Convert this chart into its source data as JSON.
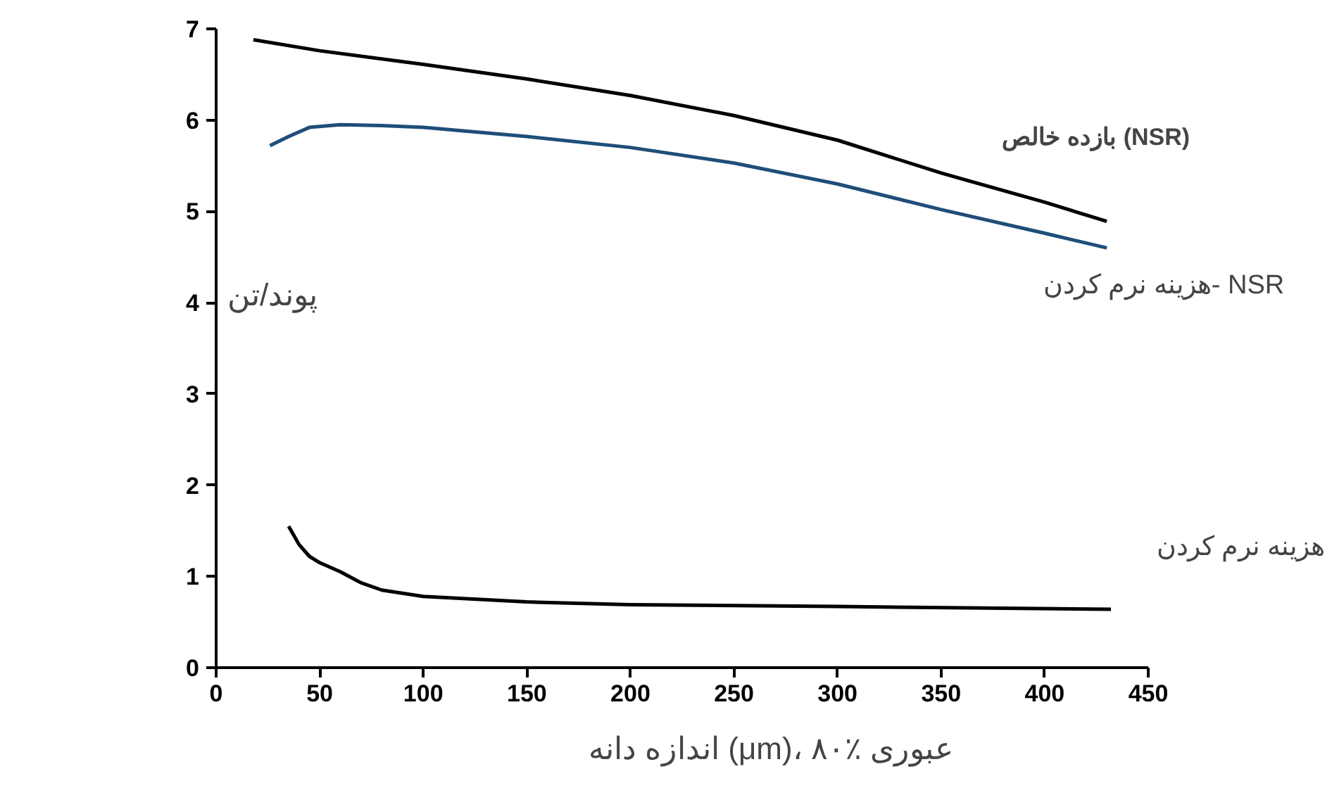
{
  "chart_data": {
    "type": "line",
    "xlabel": "اندازه دانه (μm)، ۸۰٪ عبوری",
    "ylabel": "پوند/تن",
    "xlim": [
      0,
      450
    ],
    "ylim": [
      0,
      7
    ],
    "xticks": [
      0,
      50,
      100,
      150,
      200,
      250,
      300,
      350,
      400,
      450
    ],
    "yticks": [
      0,
      1,
      2,
      3,
      4,
      5,
      6,
      7
    ],
    "grid": false,
    "line_style": "solid",
    "marker": "none",
    "series": [
      {
        "name": "بازده خالص (NSR)",
        "color": "#000000",
        "x": [
          18,
          50,
          100,
          150,
          200,
          250,
          300,
          350,
          400,
          430
        ],
        "values": [
          6.88,
          6.76,
          6.61,
          6.45,
          6.27,
          6.05,
          5.78,
          5.42,
          5.1,
          4.89
        ]
      },
      {
        "name": "هزینه نرم کردن- NSR",
        "color": "#1f4e79",
        "x": [
          26,
          35,
          45,
          60,
          80,
          100,
          150,
          200,
          250,
          300,
          350,
          400,
          430
        ],
        "values": [
          5.72,
          5.82,
          5.92,
          5.95,
          5.94,
          5.92,
          5.82,
          5.7,
          5.53,
          5.3,
          5.02,
          4.76,
          4.6
        ]
      },
      {
        "name": "هزینه نرم کردن",
        "color": "#000000",
        "x": [
          35,
          40,
          45,
          50,
          60,
          70,
          80,
          100,
          150,
          200,
          300,
          432
        ],
        "values": [
          1.55,
          1.35,
          1.22,
          1.15,
          1.05,
          0.93,
          0.85,
          0.78,
          0.72,
          0.69,
          0.67,
          0.64
        ]
      }
    ]
  }
}
